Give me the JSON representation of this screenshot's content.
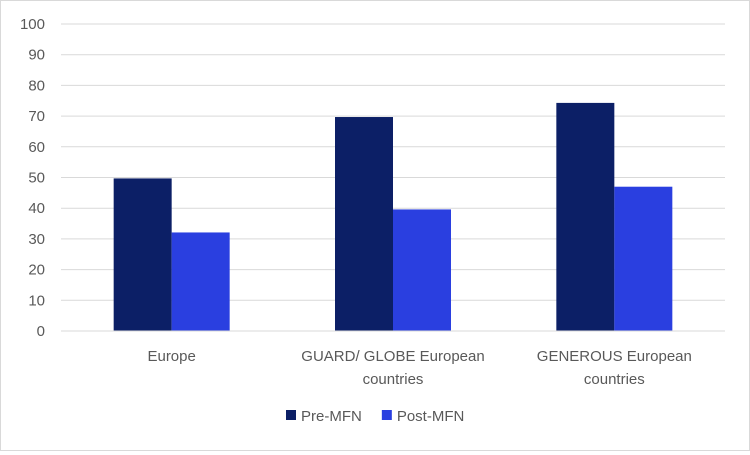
{
  "chart_data": {
    "type": "bar",
    "categories": [
      [
        "Europe"
      ],
      [
        "GUARD/ GLOBE European",
        "countries"
      ],
      [
        "GENEROUS European",
        "countries"
      ]
    ],
    "series": [
      {
        "name": "Pre-MFN",
        "color": "#0c1f66",
        "values": [
          49.7,
          69.7,
          74.3
        ]
      },
      {
        "name": "Post-MFN",
        "color": "#2a3fe0",
        "values": [
          32.1,
          39.6,
          47.0
        ]
      }
    ],
    "title": "",
    "xlabel": "",
    "ylabel": "",
    "ylim": [
      0,
      100
    ],
    "yticks": [
      0,
      10,
      20,
      30,
      40,
      50,
      60,
      70,
      80,
      90,
      100
    ],
    "grid": true,
    "legend": "bottom"
  }
}
